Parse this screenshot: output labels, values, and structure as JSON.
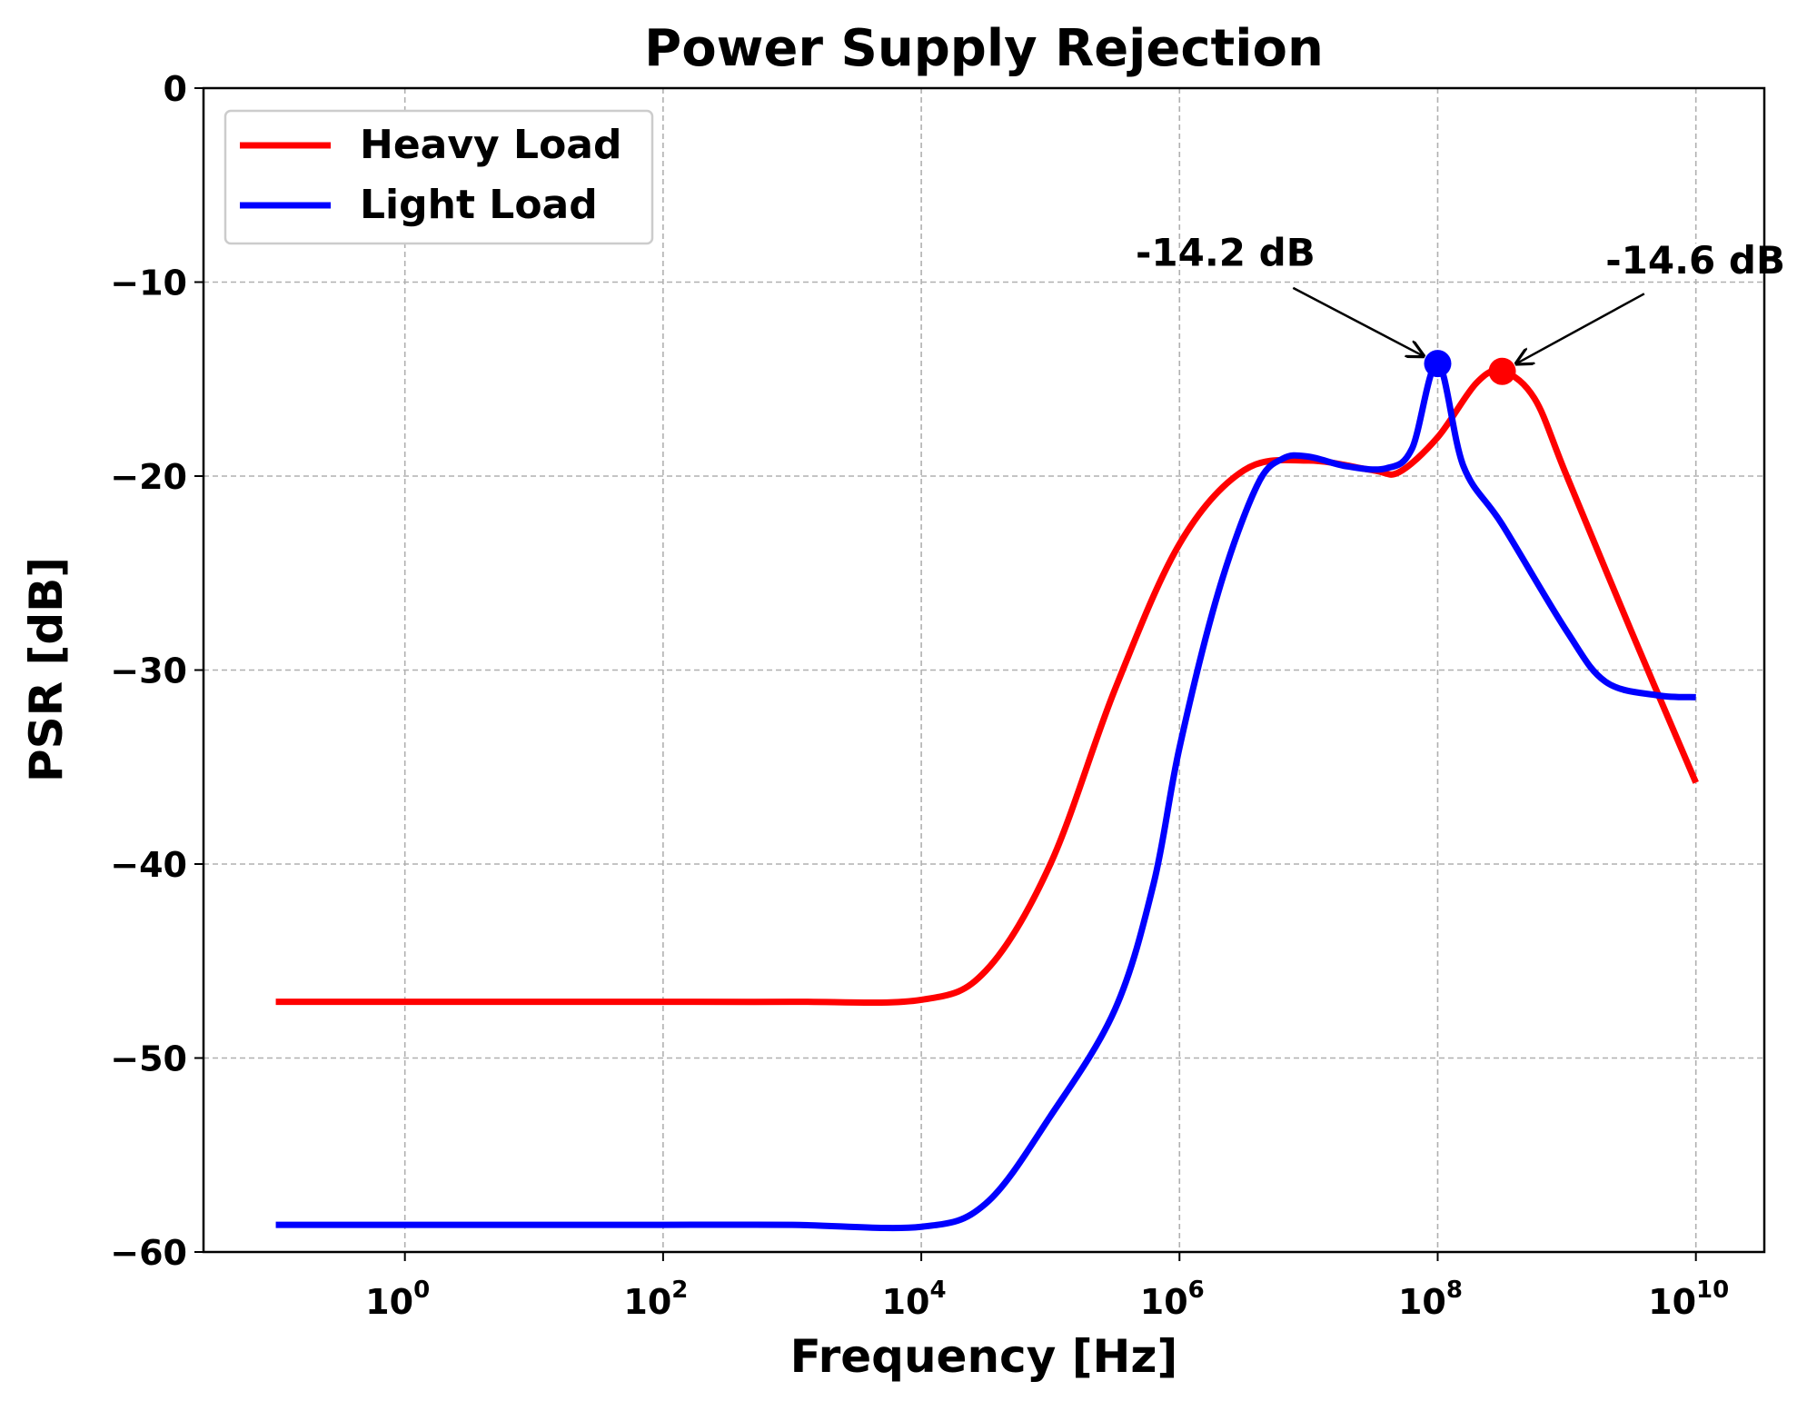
{
  "chart_data": {
    "type": "line",
    "title": "Power Supply Rejection",
    "xlabel": "Frequency [Hz]",
    "ylabel": "PSR [dB]",
    "xscale": "log",
    "xlim_log10": [
      -1.56,
      10.53
    ],
    "ylim": [
      -60,
      0
    ],
    "grid": true,
    "legend_placement": "top-left",
    "xticks": [
      {
        "base": "10",
        "exp": "0",
        "v": 0
      },
      {
        "base": "10",
        "exp": "2",
        "v": 2
      },
      {
        "base": "10",
        "exp": "4",
        "v": 4
      },
      {
        "base": "10",
        "exp": "6",
        "v": 6
      },
      {
        "base": "10",
        "exp": "8",
        "v": 8
      },
      {
        "base": "10",
        "exp": "10",
        "v": 10
      }
    ],
    "yticks": [
      {
        "label": "0",
        "v": 0
      },
      {
        "label": "−10",
        "v": -10
      },
      {
        "label": "−20",
        "v": -20
      },
      {
        "label": "−30",
        "v": -30
      },
      {
        "label": "−40",
        "v": -40
      },
      {
        "label": "−50",
        "v": -50
      },
      {
        "label": "−60",
        "v": -60
      }
    ],
    "series": [
      {
        "name": "Heavy Load",
        "color": "#ff0000",
        "log10_freq": [
          -1,
          0,
          2,
          3,
          4,
          4.5,
          5,
          5.5,
          6,
          6.5,
          7,
          7.5,
          7.7,
          8,
          8.3,
          8.5,
          8.75,
          9,
          9.5,
          10
        ],
        "psr_db": [
          -47.1,
          -47.1,
          -47.1,
          -47.1,
          -47,
          -45.5,
          -40,
          -31,
          -23.5,
          -19.7,
          -19.2,
          -19.7,
          -19.8,
          -18,
          -15.2,
          -14.6,
          -16,
          -20,
          -28,
          -35.8
        ]
      },
      {
        "name": "Light Load",
        "color": "#0000ff",
        "log10_freq": [
          -1,
          0,
          2,
          3,
          4,
          4.5,
          5,
          5.5,
          5.8,
          6,
          6.3,
          6.6,
          6.8,
          7,
          7.3,
          7.6,
          7.8,
          8,
          8.2,
          8.5,
          9,
          9.3,
          9.7,
          10
        ],
        "psr_db": [
          -58.6,
          -58.6,
          -58.6,
          -58.6,
          -58.7,
          -57.5,
          -53,
          -47.5,
          -41,
          -34,
          -26,
          -20.5,
          -19.1,
          -19,
          -19.5,
          -19.6,
          -18.6,
          -14.2,
          -19.5,
          -22.5,
          -28,
          -30.6,
          -31.3,
          -31.4
        ]
      }
    ],
    "annotations": [
      {
        "text": "-14.2 dB",
        "point_log10_freq": 8,
        "point_db": -14.2,
        "text_log10_freq": 5.66,
        "text_db": -8.5,
        "arrow_from_log10_freq": 6.88,
        "arrow_from_db": -10.3,
        "color": "#0000ff"
      },
      {
        "text": "-14.6 dB",
        "point_log10_freq": 8.5,
        "point_db": -14.6,
        "text_log10_freq": 9.3,
        "text_db": -8.9,
        "arrow_from_log10_freq": 9.6,
        "arrow_from_db": -10.6,
        "color": "#ff0000"
      }
    ]
  }
}
